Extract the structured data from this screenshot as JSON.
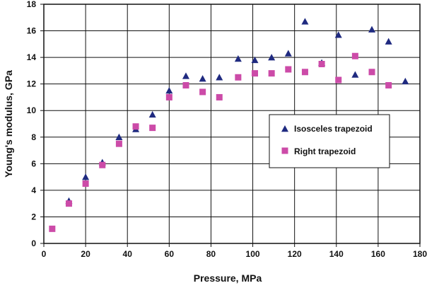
{
  "chart_data": {
    "type": "scatter",
    "title": "",
    "xlabel": "Pressure, MPa",
    "ylabel": "Young's modulus, GPa",
    "xlim": [
      0,
      180
    ],
    "ylim": [
      0,
      18
    ],
    "xticks": [
      0,
      20,
      40,
      60,
      80,
      100,
      120,
      140,
      160,
      180
    ],
    "yticks": [
      0,
      2,
      4,
      6,
      8,
      10,
      12,
      14,
      16,
      18
    ],
    "grid": true,
    "legend_position": "right-center",
    "series": [
      {
        "name": "Isosceles trapezoid",
        "marker": "triangle",
        "color": "#1f2a80",
        "x": [
          12,
          20,
          28,
          36,
          44,
          52,
          60,
          68,
          76,
          84,
          93,
          101,
          109,
          117,
          125,
          133,
          141,
          149,
          157,
          165,
          173
        ],
        "y": [
          3.2,
          5.0,
          6.1,
          8.0,
          8.6,
          9.7,
          11.5,
          12.6,
          12.4,
          12.5,
          13.9,
          13.8,
          14.0,
          14.3,
          16.7,
          13.6,
          15.7,
          12.7,
          16.1,
          15.2,
          12.2
        ]
      },
      {
        "name": "Right trapezoid",
        "marker": "square",
        "color": "#cc4ba8",
        "x": [
          4,
          12,
          20,
          28,
          36,
          44,
          52,
          60,
          68,
          76,
          84,
          93,
          101,
          109,
          117,
          125,
          133,
          141,
          149,
          157,
          165
        ],
        "y": [
          1.1,
          3.0,
          4.5,
          5.9,
          7.5,
          8.8,
          8.7,
          11.0,
          11.9,
          11.4,
          11.0,
          12.5,
          12.8,
          12.8,
          13.1,
          12.9,
          13.5,
          12.3,
          14.1,
          12.9,
          11.9
        ]
      }
    ]
  }
}
